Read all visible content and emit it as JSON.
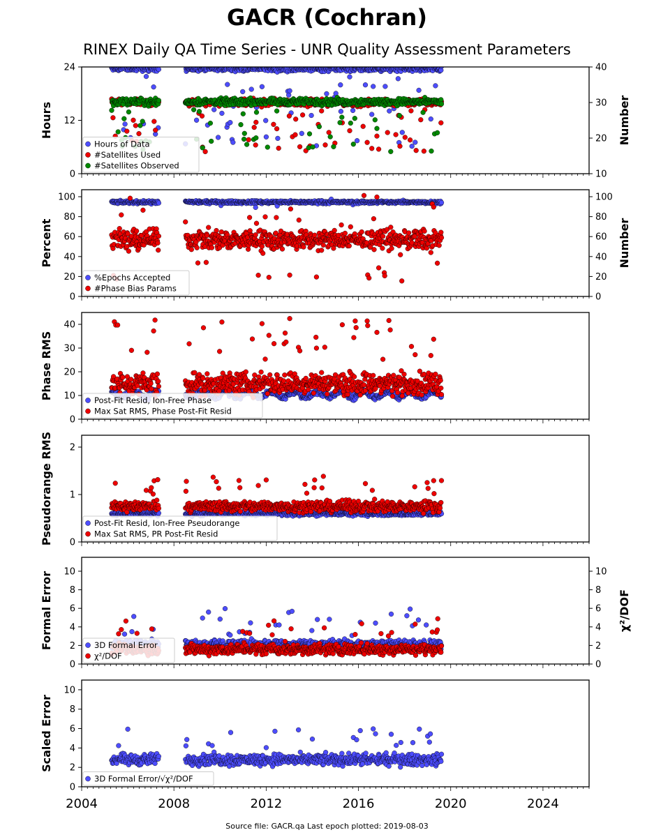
{
  "title": "GACR (Cochran)",
  "subtitle": "RINEX Daily QA Time Series - UNR Quality Assessment Parameters",
  "footer": "Source file: GACR.qa Last epoch plotted: 2019-08-03",
  "colors": {
    "blue": "#4d4dff",
    "red": "#ee0000",
    "green": "#008800",
    "edge": "#000000"
  },
  "chart_data": [
    {
      "type": "scatter",
      "xlim": [
        2004,
        2026
      ],
      "xticks": [
        "2004",
        "2008",
        "2012",
        "2016",
        "2020",
        "2024"
      ],
      "ylabel": "Hours",
      "ylim": [
        0,
        24
      ],
      "yticks": [
        "0",
        "12",
        "24"
      ],
      "ylabel_right": "Number",
      "ylim_right": [
        10,
        40
      ],
      "yticks_right": [
        "10",
        "20",
        "30",
        "40"
      ],
      "legend_position": "lower-left",
      "series": [
        {
          "name": "Hours of Data",
          "axis": "left",
          "color": "blue",
          "base": 23.6,
          "spread": 0.5,
          "outlier": 0.1,
          "outlier_range": [
            6,
            22
          ]
        },
        {
          "name": "#Satellites Used",
          "axis": "right",
          "color": "red",
          "base": 30.0,
          "spread": 0.8,
          "outlier": 0.08,
          "outlier_range": [
            16,
            28
          ]
        },
        {
          "name": "#Satellites Observed",
          "axis": "right",
          "color": "green",
          "base": 30.2,
          "spread": 0.8,
          "outlier": 0.05,
          "outlier_range": [
            16,
            28
          ]
        }
      ]
    },
    {
      "type": "scatter",
      "xlim": [
        2004,
        2026
      ],
      "ylabel": "Percent",
      "ylim": [
        0,
        107
      ],
      "yticks": [
        "0",
        "20",
        "40",
        "60",
        "80",
        "100"
      ],
      "ylabel_right": "Number",
      "ylim_right": [
        0,
        107
      ],
      "yticks_right": [
        "0",
        "20",
        "40",
        "60",
        "80",
        "100"
      ],
      "legend_position": "lower-left",
      "series": [
        {
          "name": "%Epochs Accepted",
          "axis": "left",
          "color": "blue",
          "base": 94.5,
          "spread": 1.2,
          "outlier": 0.02,
          "outlier_range": [
            88,
            99
          ]
        },
        {
          "name": "#Phase Bias Params",
          "axis": "right",
          "color": "red",
          "base": 57,
          "spread": 8,
          "outlier": 0.08,
          "outlier_range": [
            15,
            102
          ]
        }
      ]
    },
    {
      "type": "scatter",
      "xlim": [
        2004,
        2026
      ],
      "ylabel": "Phase RMS",
      "ylim": [
        0,
        45
      ],
      "yticks": [
        "0",
        "10",
        "20",
        "30",
        "40"
      ],
      "legend_position": "lower-left",
      "series": [
        {
          "name": "Post-Fit Resid, Ion-Free Phase",
          "axis": "left",
          "color": "blue",
          "base": 10.5,
          "spread": 1.0,
          "seasonal": 1.2,
          "outlier": 0,
          "outlier_range": [
            10,
            12
          ]
        },
        {
          "name": "Max Sat RMS, Phase Post-Fit Resid",
          "axis": "left",
          "color": "red",
          "base": 15,
          "spread": 4,
          "outlier": 0.06,
          "outlier_range": [
            25,
            43
          ]
        }
      ]
    },
    {
      "type": "scatter",
      "xlim": [
        2004,
        2026
      ],
      "ylabel": "Pseudorange RMS",
      "ylim": [
        0,
        2.25
      ],
      "yticks": [
        "0",
        "1",
        "2"
      ],
      "legend_position": "lower-left",
      "series": [
        {
          "name": "Post-Fit Resid, Ion-Free Pseudorange",
          "axis": "left",
          "color": "blue",
          "base": 0.6,
          "spread": 0.04,
          "outlier": 0,
          "outlier_range": [
            0.6,
            0.7
          ]
        },
        {
          "name": "Max Sat RMS, PR Post-Fit Resid",
          "axis": "left",
          "color": "red",
          "base": 0.75,
          "spread": 0.1,
          "outlier": 0.04,
          "outlier_range": [
            1.0,
            1.4
          ]
        }
      ]
    },
    {
      "type": "scatter",
      "xlim": [
        2004,
        2026
      ],
      "ylabel": "Formal Error",
      "ylim": [
        0,
        11.5
      ],
      "yticks": [
        "0",
        "2",
        "4",
        "6",
        "8",
        "10"
      ],
      "ylabel_right": "χ²/DOF",
      "ylim_right": [
        0,
        11.5
      ],
      "yticks_right": [
        "0",
        "2",
        "4",
        "6",
        "8",
        "10"
      ],
      "legend_position": "lower-left",
      "series": [
        {
          "name": "3D Formal Error",
          "axis": "left",
          "color": "blue",
          "base": 2.1,
          "spread": 0.4,
          "outlier": 0.03,
          "outlier_range": [
            3,
            6
          ]
        },
        {
          "name": "χ²/DOF",
          "axis": "right",
          "color": "red",
          "base": 1.6,
          "spread": 0.5,
          "outlier": 0.03,
          "outlier_range": [
            3,
            5
          ]
        }
      ]
    },
    {
      "type": "scatter",
      "xlim": [
        2004,
        2026
      ],
      "ylabel": "Scaled Error",
      "ylim": [
        0,
        11
      ],
      "yticks": [
        "0",
        "2",
        "4",
        "6",
        "8",
        "10"
      ],
      "legend_position": "lower-left",
      "series": [
        {
          "name": "3D Formal Error/√χ²/DOF",
          "axis": "left",
          "color": "blue",
          "base": 2.8,
          "spread": 0.5,
          "outlier": 0.03,
          "outlier_range": [
            4,
            6
          ]
        }
      ]
    }
  ]
}
